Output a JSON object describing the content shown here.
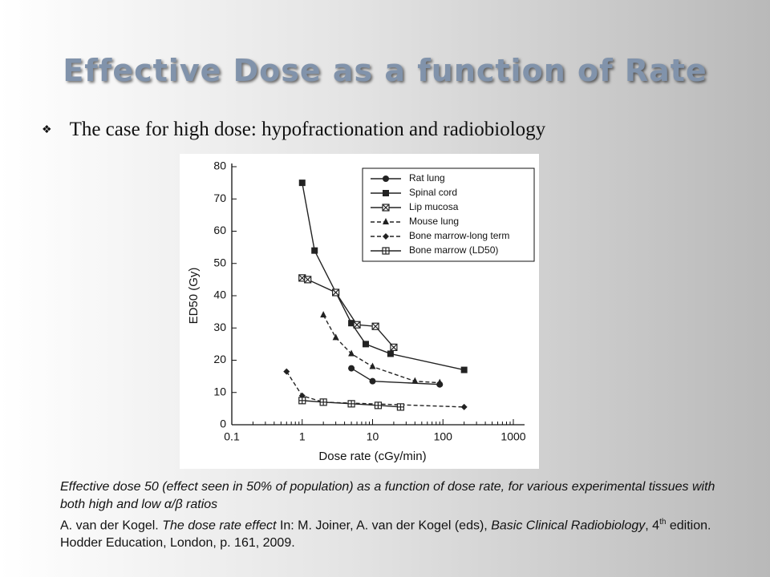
{
  "slide": {
    "title": "Effective Dose as a function of Rate",
    "bullet": "The case for high dose:  hypofractionation and radiobiology",
    "caption": "Effective dose 50 (effect seen in 50% of population) as a function of dose rate, for various experimental tissues with both high and low α/β ratios",
    "citation": [
      "A. van der Kogel. ",
      "The dose rate effect",
      " In: M. Joiner, A. van der Kogel (eds), ",
      "Basic Clinical Radiobiology",
      ", 4",
      "th",
      " edition. Hodder Education, London, p. 161, 2009."
    ]
  },
  "chart_data": {
    "type": "line",
    "x_label": "Dose rate (cGy/min)",
    "y_label": "ED50 (Gy)",
    "x_scale": "log",
    "xlim": [
      0.1,
      1000
    ],
    "xticks": [
      0.1,
      1,
      10,
      100,
      1000
    ],
    "ylim": [
      0,
      80
    ],
    "yticks": [
      0,
      10,
      20,
      30,
      40,
      50,
      60,
      70,
      80
    ],
    "legend": "top-right",
    "series": [
      {
        "name": "Rat lung",
        "color": "#222222",
        "marker": "circle",
        "dashed": false,
        "x": [
          5,
          10,
          90
        ],
        "values": [
          17.5,
          13.5,
          12.5
        ]
      },
      {
        "name": "Spinal cord",
        "color": "#222222",
        "marker": "square",
        "dashed": false,
        "x": [
          1,
          1.5,
          5,
          8,
          18,
          200
        ],
        "values": [
          75,
          54,
          31.5,
          25,
          22,
          17
        ]
      },
      {
        "name": "Lip mucosa",
        "color": "#222222",
        "marker": "square-x",
        "dashed": false,
        "x": [
          1,
          1.2,
          3,
          6,
          11,
          20
        ],
        "values": [
          45.5,
          45,
          41,
          31,
          30.5,
          24
        ]
      },
      {
        "name": "Mouse lung",
        "color": "#222222",
        "marker": "triangle",
        "dashed": true,
        "x": [
          2,
          3,
          5,
          10,
          40,
          90
        ],
        "values": [
          34,
          27,
          22,
          18,
          13.5,
          13
        ]
      },
      {
        "name": "Bone marrow-long term",
        "color": "#222222",
        "marker": "diamond",
        "dashed": true,
        "x": [
          0.6,
          1,
          2,
          200
        ],
        "values": [
          16.5,
          9,
          7,
          5.5
        ]
      },
      {
        "name": "Bone marrow (LD50)",
        "color": "#222222",
        "marker": "square-plus",
        "dashed": false,
        "x": [
          1,
          2,
          5,
          12,
          25
        ],
        "values": [
          7.5,
          7,
          6.5,
          6,
          5.5
        ]
      }
    ]
  }
}
